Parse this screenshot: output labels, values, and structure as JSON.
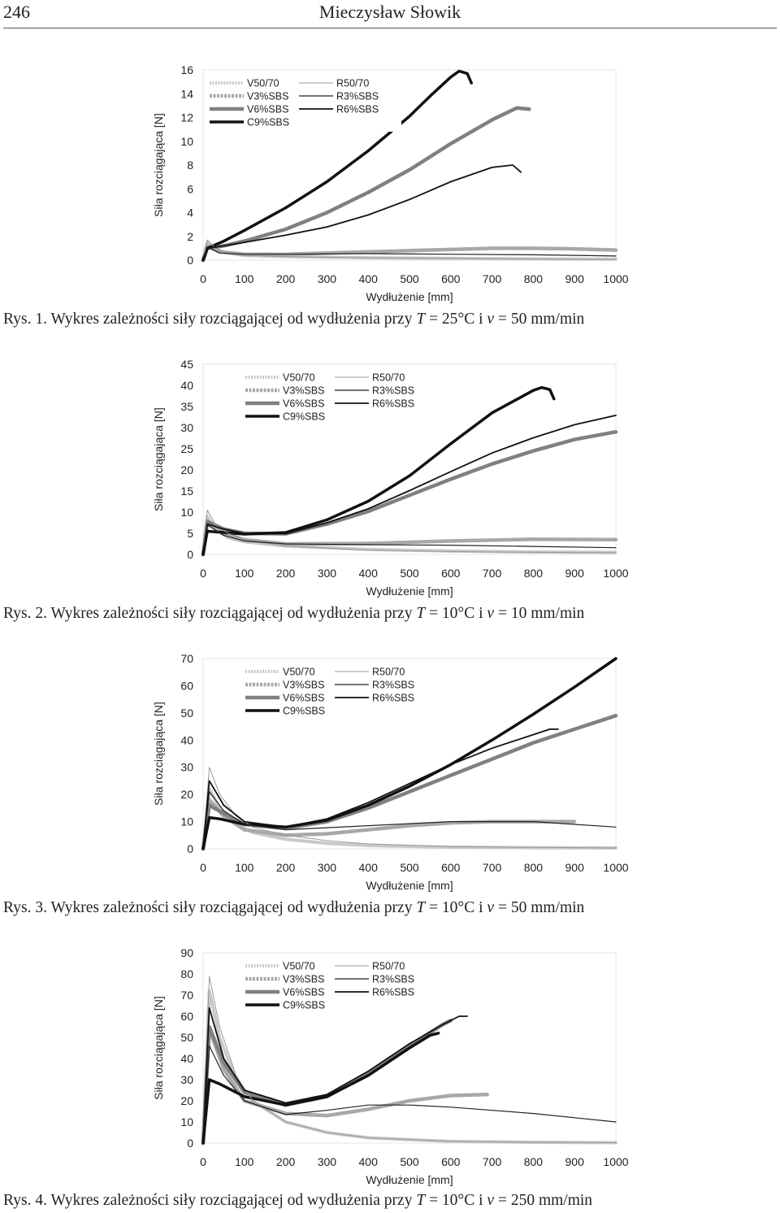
{
  "header": {
    "page_number": "246",
    "author": "Mieczysław Słowik"
  },
  "charts": [
    {
      "id": "rys1",
      "caption": "Rys. 1. Wykres zależności siły rozciągającej od wydłużenia przy T = 25°C i v = 50 mm/min",
      "caption_parts": {
        "label": "Rys. 1.",
        "text": "Wykres zależności siły rozciągającej od wydłużenia przy ",
        "T": "T",
        "t_val": " = 25°C i ",
        "v": "v",
        "v_val": " = 50 mm/min"
      },
      "chart_data": {
        "type": "line",
        "xlabel": "Wydłużenie [mm]",
        "ylabel": "Siła rozciągająca [N]",
        "xlim": [
          0,
          1000
        ],
        "ylim": [
          0,
          16
        ],
        "xticks": [
          0,
          100,
          200,
          300,
          400,
          500,
          600,
          700,
          800,
          900,
          1000
        ],
        "yticks": [
          0,
          2,
          4,
          6,
          8,
          10,
          12,
          14,
          16
        ],
        "grid": false,
        "legend_position": "top-left",
        "series": [
          {
            "name": "V50/70",
            "x": [
              0,
              10,
              30,
              60,
              100,
              200,
              400,
              600,
              800,
              1000
            ],
            "y": [
              0,
              1.5,
              0.9,
              0.6,
              0.4,
              0.3,
              0.2,
              0.15,
              0.1,
              0.08
            ]
          },
          {
            "name": "V3%SBS",
            "x": [
              0,
              10,
              40,
              100,
              200,
              400,
              600,
              700,
              800,
              900,
              1000
            ],
            "y": [
              0,
              1.2,
              0.7,
              0.5,
              0.5,
              0.7,
              0.9,
              1.0,
              1.0,
              0.95,
              0.85
            ]
          },
          {
            "name": "V6%SBS",
            "x": [
              0,
              10,
              50,
              100,
              200,
              300,
              400,
              500,
              600,
              700,
              760,
              790
            ],
            "y": [
              0,
              1.0,
              1.2,
              1.6,
              2.6,
              4.0,
              5.7,
              7.6,
              9.8,
              11.8,
              12.8,
              12.7
            ]
          },
          {
            "name": "C9%SBS",
            "x": [
              0,
              10,
              50,
              100,
              200,
              300,
              400,
              500,
              550,
              600,
              620,
              640,
              650
            ],
            "y": [
              0,
              1.0,
              1.6,
              2.5,
              4.4,
              6.6,
              9.2,
              12.1,
              13.8,
              15.4,
              15.9,
              15.7,
              14.9
            ]
          },
          {
            "name": "R50/70",
            "x": [
              0,
              10,
              30,
              60,
              100,
              200,
              400,
              600,
              800,
              1000
            ],
            "y": [
              0,
              1.7,
              1.0,
              0.6,
              0.4,
              0.3,
              0.2,
              0.15,
              0.1,
              0.05
            ]
          },
          {
            "name": "R3%SBS",
            "x": [
              0,
              10,
              40,
              100,
              200,
              400,
              600,
              800,
              1000
            ],
            "y": [
              0,
              1.1,
              0.6,
              0.5,
              0.5,
              0.55,
              0.5,
              0.45,
              0.35
            ]
          },
          {
            "name": "R6%SBS",
            "x": [
              0,
              10,
              50,
              100,
              200,
              300,
              400,
              500,
              600,
              700,
              750,
              770
            ],
            "y": [
              0,
              1.0,
              1.2,
              1.5,
              2.1,
              2.8,
              3.8,
              5.1,
              6.6,
              7.8,
              8.0,
              7.4
            ]
          }
        ]
      }
    },
    {
      "id": "rys2",
      "caption": "Rys. 2. Wykres zależności siły rozciągającej od wydłużenia przy T = 10°C i v = 10 mm/min",
      "caption_parts": {
        "label": "Rys. 2.",
        "text": "Wykres zależności siły rozciągającej od wydłużenia przy ",
        "T": "T",
        "t_val": " = 10°C i ",
        "v": "v",
        "v_val": " = 10 mm/min"
      },
      "chart_data": {
        "type": "line",
        "xlabel": "Wydłużenie [mm]",
        "ylabel": "Siła rozciągająca [N]",
        "xlim": [
          0,
          1000
        ],
        "ylim": [
          0,
          45
        ],
        "xticks": [
          0,
          100,
          200,
          300,
          400,
          500,
          600,
          700,
          800,
          900,
          1000
        ],
        "yticks": [
          0,
          5,
          10,
          15,
          20,
          25,
          30,
          35,
          40,
          45
        ],
        "grid": false,
        "legend_position": "top-center",
        "series": [
          {
            "name": "V50/70",
            "x": [
              0,
              10,
              30,
              60,
              100,
              200,
              400,
              600,
              800,
              1000
            ],
            "y": [
              0,
              9,
              6,
              4,
              3,
              2,
              1.2,
              0.8,
              0.6,
              0.5
            ]
          },
          {
            "name": "V3%SBS",
            "x": [
              0,
              10,
              50,
              100,
              200,
              400,
              600,
              800,
              1000
            ],
            "y": [
              0,
              7.5,
              5,
              3.5,
              2.5,
              2.6,
              3.2,
              3.6,
              3.5
            ]
          },
          {
            "name": "V6%SBS",
            "x": [
              0,
              10,
              50,
              100,
              200,
              300,
              400,
              500,
              600,
              700,
              800,
              900,
              1000
            ],
            "y": [
              0,
              7.8,
              6,
              5,
              4.9,
              7.2,
              10.2,
              14,
              17.8,
              21.4,
              24.5,
              27.2,
              29
            ]
          },
          {
            "name": "C9%SBS",
            "x": [
              0,
              10,
              50,
              100,
              200,
              300,
              400,
              500,
              600,
              700,
              800,
              820,
              840,
              850
            ],
            "y": [
              0,
              5.5,
              5.2,
              4.8,
              5.2,
              8.2,
              12.6,
              18.6,
              26.2,
              33.5,
              38.8,
              39.5,
              39.0,
              36.8
            ]
          },
          {
            "name": "R50/70",
            "x": [
              0,
              10,
              30,
              60,
              100,
              200,
              400,
              600,
              800,
              1000
            ],
            "y": [
              0,
              10.5,
              7,
              5,
              3.5,
              2,
              1,
              0.7,
              0.5,
              0.4
            ]
          },
          {
            "name": "R3%SBS",
            "x": [
              0,
              10,
              50,
              100,
              200,
              400,
              600,
              800,
              1000
            ],
            "y": [
              0,
              7,
              4.5,
              3.2,
              2.5,
              2.3,
              2.2,
              1.9,
              1.6
            ]
          },
          {
            "name": "R6%SBS",
            "x": [
              0,
              10,
              50,
              100,
              200,
              300,
              400,
              500,
              600,
              700,
              800,
              900,
              1000
            ],
            "y": [
              0,
              7.2,
              6,
              5,
              4.9,
              7.5,
              10.8,
              15.1,
              19.6,
              24.0,
              27.6,
              30.7,
              32.9
            ]
          }
        ]
      }
    },
    {
      "id": "rys3",
      "caption": "Rys. 3. Wykres zależności siły rozciągającej od wydłużenia przy T = 10°C i v = 50 mm/min",
      "caption_parts": {
        "label": "Rys. 3.",
        "text": "Wykres zależności siły rozciągającej od wydłużenia przy ",
        "T": "T",
        "t_val": " = 10°C i ",
        "v": "v",
        "v_val": " = 50 mm/min"
      },
      "chart_data": {
        "type": "line",
        "xlabel": "Wydłużenie [mm]",
        "ylabel": "Siła rozciągająca [N]",
        "xlim": [
          0,
          1000
        ],
        "ylim": [
          0,
          70
        ],
        "xticks": [
          0,
          100,
          200,
          300,
          400,
          500,
          600,
          700,
          800,
          900,
          1000
        ],
        "yticks": [
          0,
          10,
          20,
          30,
          40,
          50,
          60,
          70
        ],
        "grid": false,
        "legend_position": "top-center",
        "series": [
          {
            "name": "V50/70",
            "x": [
              0,
              15,
              40,
              80,
              120,
              200,
              300,
              400,
              600,
              800,
              1000
            ],
            "y": [
              0,
              22,
              15,
              9,
              6,
              3.5,
              2,
              1.2,
              0.6,
              0.4,
              0.3
            ]
          },
          {
            "name": "V3%SBS",
            "x": [
              0,
              15,
              50,
              100,
              200,
              300,
              400,
              500,
              600,
              700,
              800,
              900
            ],
            "y": [
              0,
              18,
              12,
              7,
              5,
              5.5,
              7,
              8.5,
              9.5,
              10,
              10,
              10
            ]
          },
          {
            "name": "V6%SBS",
            "x": [
              0,
              15,
              50,
              100,
              200,
              300,
              400,
              500,
              600,
              700,
              800,
              900,
              1000
            ],
            "y": [
              0,
              16,
              13,
              9,
              7.5,
              10,
              15,
              21,
              27,
              33,
              39,
              44,
              49
            ]
          },
          {
            "name": "C9%SBS",
            "x": [
              0,
              15,
              40,
              100,
              200,
              300,
              400,
              500,
              600,
              700,
              800,
              900,
              1000
            ],
            "y": [
              0,
              11.5,
              11,
              9,
              8,
              10.5,
              16,
              23,
              31,
              40,
              49.5,
              59.5,
              70
            ]
          },
          {
            "name": "R50/70",
            "x": [
              0,
              15,
              40,
              80,
              120,
              200,
              300,
              400,
              600,
              800,
              1000
            ],
            "y": [
              0,
              30,
              20,
              12,
              8,
              5,
              3,
              1.8,
              0.8,
              0.5,
              0.3
            ]
          },
          {
            "name": "R3%SBS",
            "x": [
              0,
              15,
              50,
              100,
              200,
              400,
              600,
              800,
              1000
            ],
            "y": [
              0,
              21,
              14,
              9,
              7,
              8.5,
              10,
              10,
              8
            ]
          },
          {
            "name": "R6%SBS",
            "x": [
              0,
              15,
              50,
              100,
              200,
              300,
              400,
              500,
              600,
              700,
              800,
              840,
              860
            ],
            "y": [
              0,
              25,
              16,
              10,
              8,
              11,
              17,
              24,
              31,
              37,
              42,
              44,
              44
            ]
          }
        ]
      }
    },
    {
      "id": "rys4",
      "caption": "Rys. 4. Wykres zależności siły rozciągającej od wydłużenia przy T = 10°C i v = 250 mm/min",
      "caption_parts": {
        "label": "Rys. 4.",
        "text": "Wykres zależności siły rozciągającej od wydłużenia przy ",
        "T": "T",
        "t_val": " = 10°C i ",
        "v": "v",
        "v_val": " = 250 mm/min"
      },
      "chart_data": {
        "type": "line",
        "xlabel": "Wydłużenie [mm]",
        "ylabel": "Siła rozciągająca [N]",
        "xlim": [
          0,
          1000
        ],
        "ylim": [
          0,
          90
        ],
        "xticks": [
          0,
          100,
          200,
          300,
          400,
          500,
          600,
          700,
          800,
          900,
          1000
        ],
        "yticks": [
          0,
          10,
          20,
          30,
          40,
          50,
          60,
          70,
          80,
          90
        ],
        "grid": false,
        "legend_position": "top-center",
        "series": [
          {
            "name": "V50/70",
            "x": [
              0,
              15,
              40,
              80,
              120,
              200,
              300,
              400,
              600,
              800,
              1000
            ],
            "y": [
              0,
              72,
              50,
              30,
              20,
              10,
              5,
              2.5,
              0.8,
              0.4,
              0.2
            ]
          },
          {
            "name": "V3%SBS",
            "x": [
              0,
              15,
              50,
              100,
              200,
              300,
              400,
              500,
              600,
              690
            ],
            "y": [
              0,
              54,
              35,
              20,
              14,
              13,
              16,
              20,
              22.5,
              23
            ]
          },
          {
            "name": "V6%SBS",
            "x": [
              0,
              15,
              50,
              100,
              200,
              300,
              400,
              500,
              580,
              600
            ],
            "y": [
              0,
              55,
              38,
              24,
              18,
              22,
              33,
              46,
              56,
              58
            ]
          },
          {
            "name": "C9%SBS",
            "x": [
              0,
              15,
              40,
              100,
              200,
              300,
              400,
              500,
              550,
              570
            ],
            "y": [
              0,
              30,
              28,
              22,
              18,
              22,
              32,
              45,
              51,
              52
            ]
          },
          {
            "name": "R50/70",
            "x": [
              0,
              15,
              40,
              80,
              120,
              200,
              300,
              400,
              600,
              800,
              1000
            ],
            "y": [
              0,
              79,
              55,
              32,
              20,
              10,
              5,
              2.5,
              0.8,
              0.4,
              0.2
            ]
          },
          {
            "name": "R3%SBS",
            "x": [
              0,
              15,
              50,
              100,
              200,
              300,
              400,
              500,
              600,
              700,
              800,
              900,
              1000
            ],
            "y": [
              0,
              46,
              32,
              20,
              13.5,
              15.5,
              18,
              18,
              17,
              15.5,
              14,
              12,
              10
            ]
          },
          {
            "name": "R6%SBS",
            "x": [
              0,
              15,
              50,
              100,
              200,
              300,
              400,
              500,
              580,
              620,
              640
            ],
            "y": [
              0,
              64,
              40,
              25,
              19,
              23,
              34,
              47,
              56,
              60,
              60
            ]
          }
        ]
      }
    }
  ]
}
